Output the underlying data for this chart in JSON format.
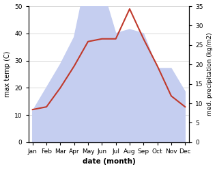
{
  "months": [
    "Jan",
    "Feb",
    "Mar",
    "Apr",
    "May",
    "Jun",
    "Jul",
    "Aug",
    "Sep",
    "Oct",
    "Nov",
    "Dec"
  ],
  "max_temp": [
    12,
    13,
    20,
    28,
    37,
    38,
    38,
    49,
    38,
    28,
    17,
    13
  ],
  "precipitation_raw": [
    8,
    14,
    20,
    27,
    44,
    40,
    28,
    29,
    28,
    19,
    19,
    13
  ],
  "temp_color": "#c0392b",
  "precip_fill_color": "#c5cef0",
  "ylim_temp": [
    0,
    50
  ],
  "ylim_precip": [
    0,
    35
  ],
  "xlabel": "date (month)",
  "ylabel_left": "max temp (C)",
  "ylabel_right": "med. precipitation (kg/m2)",
  "bg_color": "#ffffff",
  "yticks_left": [
    0,
    10,
    20,
    30,
    40,
    50
  ],
  "yticks_right": [
    0,
    5,
    10,
    15,
    20,
    25,
    30,
    35
  ]
}
